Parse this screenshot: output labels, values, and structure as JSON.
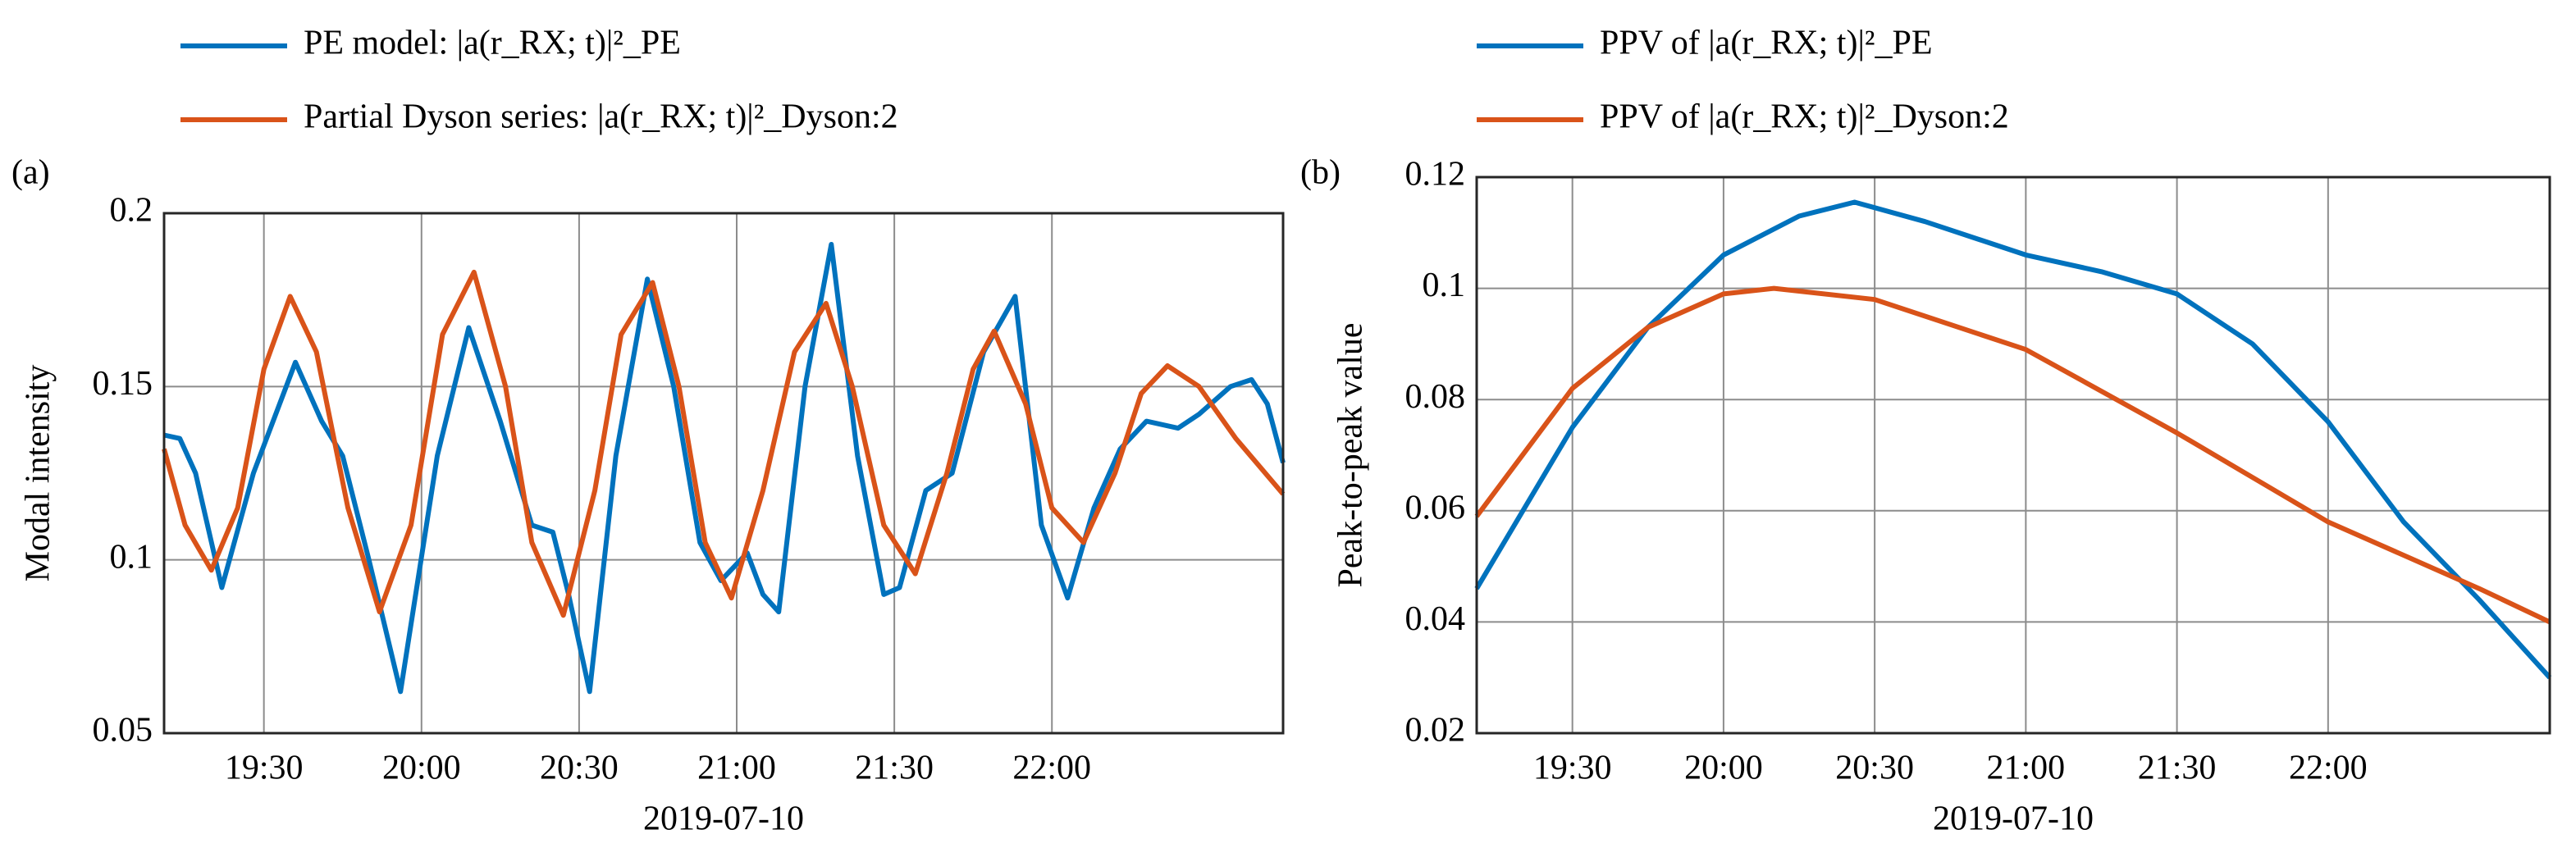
{
  "chart_data": [
    {
      "type": "line",
      "panel_label": "(a)",
      "ylabel": "Modal intensity",
      "xlabel": "2019-07-10",
      "xlim": [
        "19:11",
        "22:44"
      ],
      "xticks": [
        "19:30",
        "20:00",
        "20:30",
        "21:00",
        "21:30",
        "22:00"
      ],
      "ylim": [
        0.05,
        0.2
      ],
      "yticks": [
        0.05,
        0.1,
        0.15,
        0.2
      ],
      "grid": true,
      "series": [
        {
          "name": "PE model: |a(r_RX; t)|²_PE",
          "color": "#0072bd",
          "x": [
            "19:11",
            "19:14",
            "19:17",
            "19:22",
            "19:28",
            "19:36",
            "19:41",
            "19:45",
            "19:50",
            "19:56",
            "20:03",
            "20:09",
            "20:15",
            "20:21",
            "20:25",
            "20:28",
            "20:32",
            "20:37",
            "20:43",
            "20:48",
            "20:53",
            "20:57",
            "21:02",
            "21:05",
            "21:08",
            "21:13",
            "21:18",
            "21:23",
            "21:28",
            "21:31",
            "21:36",
            "21:41",
            "21:47",
            "21:53",
            "21:58",
            "22:03",
            "22:08",
            "22:13",
            "22:18",
            "22:24",
            "22:28",
            "22:34",
            "22:38",
            "22:41",
            "22:44"
          ],
          "values": [
            0.136,
            0.135,
            0.125,
            0.092,
            0.125,
            0.157,
            0.14,
            0.13,
            0.1,
            0.062,
            0.13,
            0.167,
            0.14,
            0.11,
            0.108,
            0.09,
            0.062,
            0.13,
            0.181,
            0.15,
            0.105,
            0.094,
            0.102,
            0.09,
            0.085,
            0.15,
            0.191,
            0.13,
            0.09,
            0.092,
            0.12,
            0.125,
            0.16,
            0.176,
            0.11,
            0.089,
            0.115,
            0.132,
            0.14,
            0.138,
            0.142,
            0.15,
            0.152,
            0.145,
            0.128
          ]
        },
        {
          "name": "Partial Dyson series: |a(r_RX; t)|²_Dyson:2",
          "color": "#d95319",
          "x": [
            "19:11",
            "19:15",
            "19:20",
            "19:25",
            "19:30",
            "19:35",
            "19:40",
            "19:46",
            "19:52",
            "19:58",
            "20:04",
            "20:10",
            "20:16",
            "20:21",
            "20:27",
            "20:33",
            "20:38",
            "20:44",
            "20:49",
            "20:54",
            "20:59",
            "21:05",
            "21:11",
            "21:17",
            "21:22",
            "21:28",
            "21:34",
            "21:40",
            "21:45",
            "21:49",
            "21:55",
            "22:00",
            "22:06",
            "22:12",
            "22:17",
            "22:22",
            "22:28",
            "22:35",
            "22:44"
          ],
          "values": [
            0.132,
            0.11,
            0.097,
            0.115,
            0.155,
            0.176,
            0.16,
            0.115,
            0.085,
            0.11,
            0.165,
            0.183,
            0.15,
            0.105,
            0.084,
            0.12,
            0.165,
            0.18,
            0.15,
            0.105,
            0.089,
            0.12,
            0.16,
            0.174,
            0.15,
            0.11,
            0.096,
            0.125,
            0.155,
            0.166,
            0.145,
            0.115,
            0.105,
            0.125,
            0.148,
            0.156,
            0.15,
            0.135,
            0.119
          ]
        }
      ]
    },
    {
      "type": "line",
      "panel_label": "(b)",
      "ylabel": "Peak-to-peak value",
      "xlabel": "2019-07-10",
      "xlim": [
        "19:11",
        "22:44"
      ],
      "xticks": [
        "19:30",
        "20:00",
        "20:30",
        "21:00",
        "21:30",
        "22:00"
      ],
      "ylim": [
        0.02,
        0.12
      ],
      "yticks": [
        0.02,
        0.04,
        0.06,
        0.08,
        0.1,
        0.12
      ],
      "grid": true,
      "series": [
        {
          "name": "PPV of |a(r_RX; t)|²_PE",
          "color": "#0072bd",
          "x": [
            "19:11",
            "19:30",
            "19:45",
            "20:00",
            "20:15",
            "20:26",
            "20:40",
            "21:00",
            "21:15",
            "21:30",
            "21:45",
            "22:00",
            "22:15",
            "22:30",
            "22:44"
          ],
          "values": [
            0.046,
            0.075,
            0.093,
            0.106,
            0.113,
            0.1155,
            0.112,
            0.106,
            0.103,
            0.099,
            0.09,
            0.076,
            0.058,
            0.044,
            0.03
          ]
        },
        {
          "name": "PPV of |a(r_RX; t)|²_Dyson:2",
          "color": "#d95319",
          "x": [
            "19:11",
            "19:30",
            "19:45",
            "20:00",
            "20:10",
            "20:30",
            "21:00",
            "21:30",
            "22:00",
            "22:30",
            "22:44"
          ],
          "values": [
            0.059,
            0.082,
            0.093,
            0.099,
            0.1,
            0.098,
            0.089,
            0.074,
            0.058,
            0.046,
            0.04
          ]
        }
      ]
    }
  ]
}
